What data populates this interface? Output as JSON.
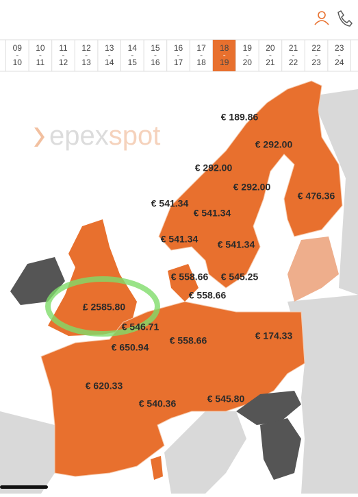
{
  "hours": [
    {
      "from": "09",
      "to": "10"
    },
    {
      "from": "10",
      "to": "11"
    },
    {
      "from": "11",
      "to": "12"
    },
    {
      "from": "12",
      "to": "13"
    },
    {
      "from": "13",
      "to": "14"
    },
    {
      "from": "14",
      "to": "15"
    },
    {
      "from": "15",
      "to": "16"
    },
    {
      "from": "16",
      "to": "17"
    },
    {
      "from": "17",
      "to": "18"
    },
    {
      "from": "18",
      "to": "19"
    },
    {
      "from": "19",
      "to": "20"
    },
    {
      "from": "20",
      "to": "21"
    },
    {
      "from": "21",
      "to": "22"
    },
    {
      "from": "22",
      "to": "23"
    },
    {
      "from": "23",
      "to": "24"
    }
  ],
  "selected_hour": 9,
  "logo": {
    "part1": "epex",
    "part2": "spot"
  },
  "prices": [
    "€ 189.86",
    "€ 292.00",
    "€ 292.00",
    "€ 292.00",
    "€ 476.36",
    "€ 541.34",
    "€ 541.34",
    "€ 541.34",
    "€ 541.34",
    "€ 558.66",
    "€ 545.25",
    "€ 558.66",
    "£ 2585.80",
    "€ 546.71",
    "€ 650.94",
    "€ 558.66",
    "€ 174.33",
    "€ 620.33",
    "€ 540.36",
    "€ 545.80"
  ]
}
